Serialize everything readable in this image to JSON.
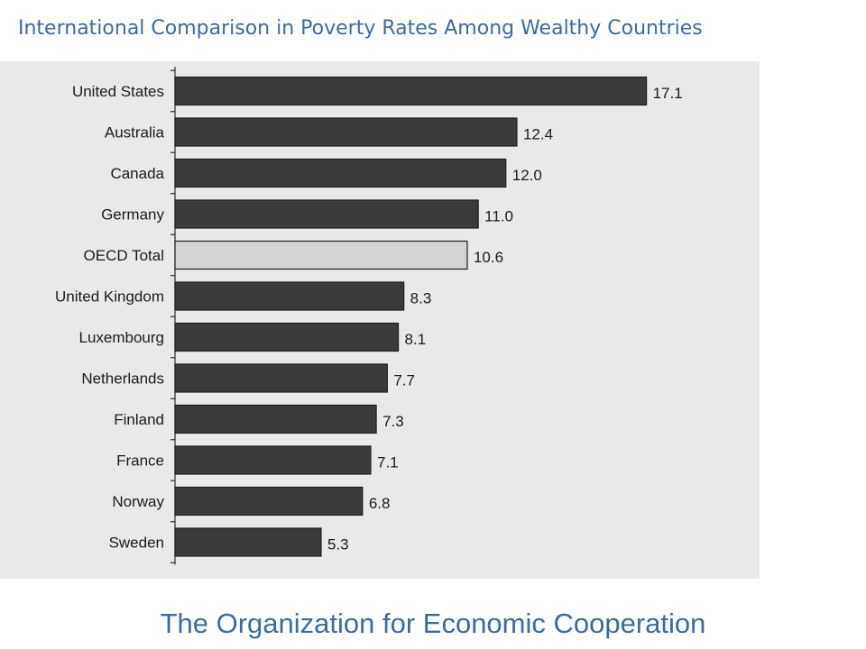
{
  "slide": {
    "title": "International Comparison in Poverty Rates Among Wealthy Countries",
    "footer": "The Organization for Economic Cooperation"
  },
  "colors": {
    "title": "#3e6a9e",
    "bar_dark": "#3b3b3b",
    "bar_highlight": "#d4d4d4",
    "background_scan": "#e9e9e7"
  },
  "chart_data": {
    "type": "bar",
    "orientation": "horizontal",
    "title": "",
    "xlabel": "",
    "ylabel": "",
    "xlim": [
      0,
      17.8
    ],
    "grid": false,
    "categories": [
      "United States",
      "Australia",
      "Canada",
      "Germany",
      "OECD Total",
      "United Kingdom",
      "Luxembourg",
      "Netherlands",
      "Finland",
      "France",
      "Norway",
      "Sweden"
    ],
    "values": [
      17.1,
      12.4,
      12.0,
      11.0,
      10.6,
      8.3,
      8.1,
      7.7,
      7.3,
      7.1,
      6.8,
      5.3
    ],
    "value_labels": [
      "17.1",
      "12.4",
      "12.0",
      "11.0",
      "10.6",
      "8.3",
      "8.1",
      "7.7",
      "7.3",
      "7.1",
      "6.8",
      "5.3"
    ],
    "highlight_category": "OECD Total"
  }
}
